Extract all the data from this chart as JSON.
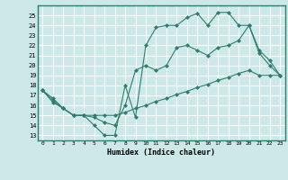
{
  "xlabel": "Humidex (Indice chaleur)",
  "bg_color": "#cce8e8",
  "grid_color": "#ffffff",
  "line_color": "#2e7d6e",
  "xlim": [
    -0.5,
    23.5
  ],
  "ylim": [
    12.5,
    26.0
  ],
  "xticks": [
    0,
    1,
    2,
    3,
    4,
    5,
    6,
    7,
    8,
    9,
    10,
    11,
    12,
    13,
    14,
    15,
    16,
    17,
    18,
    19,
    20,
    21,
    22,
    23
  ],
  "yticks": [
    13,
    14,
    15,
    16,
    17,
    18,
    19,
    20,
    21,
    22,
    23,
    24,
    25
  ],
  "line1_x": [
    0,
    1,
    2,
    3,
    4,
    5,
    6,
    7,
    8,
    9,
    10,
    11,
    12,
    13,
    14,
    15,
    16,
    17,
    18,
    19,
    20,
    21,
    22,
    23
  ],
  "line1_y": [
    17.5,
    16.7,
    15.7,
    15.0,
    15.0,
    14.0,
    13.0,
    13.0,
    18.0,
    14.8,
    22.0,
    23.8,
    24.0,
    24.0,
    24.8,
    25.2,
    24.0,
    25.3,
    25.3,
    24.0,
    24.0,
    21.2,
    20.0,
    19.0
  ],
  "line2_x": [
    0,
    1,
    2,
    3,
    4,
    5,
    6,
    7,
    8,
    9,
    10,
    11,
    12,
    13,
    14,
    15,
    16,
    17,
    18,
    19,
    20,
    21,
    22,
    23
  ],
  "line2_y": [
    17.5,
    16.3,
    15.7,
    15.0,
    15.0,
    15.0,
    15.0,
    15.0,
    15.3,
    15.7,
    16.0,
    16.4,
    16.7,
    17.1,
    17.4,
    17.8,
    18.1,
    18.5,
    18.8,
    19.2,
    19.5,
    19.0,
    19.0,
    19.0
  ],
  "line3_x": [
    0,
    1,
    2,
    3,
    4,
    5,
    6,
    7,
    8,
    9,
    10,
    11,
    12,
    13,
    14,
    15,
    16,
    17,
    18,
    19,
    20,
    21,
    22,
    23
  ],
  "line3_y": [
    17.5,
    16.5,
    15.7,
    15.0,
    15.0,
    14.8,
    14.3,
    14.0,
    16.0,
    19.5,
    20.0,
    19.5,
    20.0,
    21.8,
    22.0,
    21.5,
    21.0,
    21.8,
    22.0,
    22.5,
    24.0,
    21.5,
    20.5,
    19.0
  ]
}
